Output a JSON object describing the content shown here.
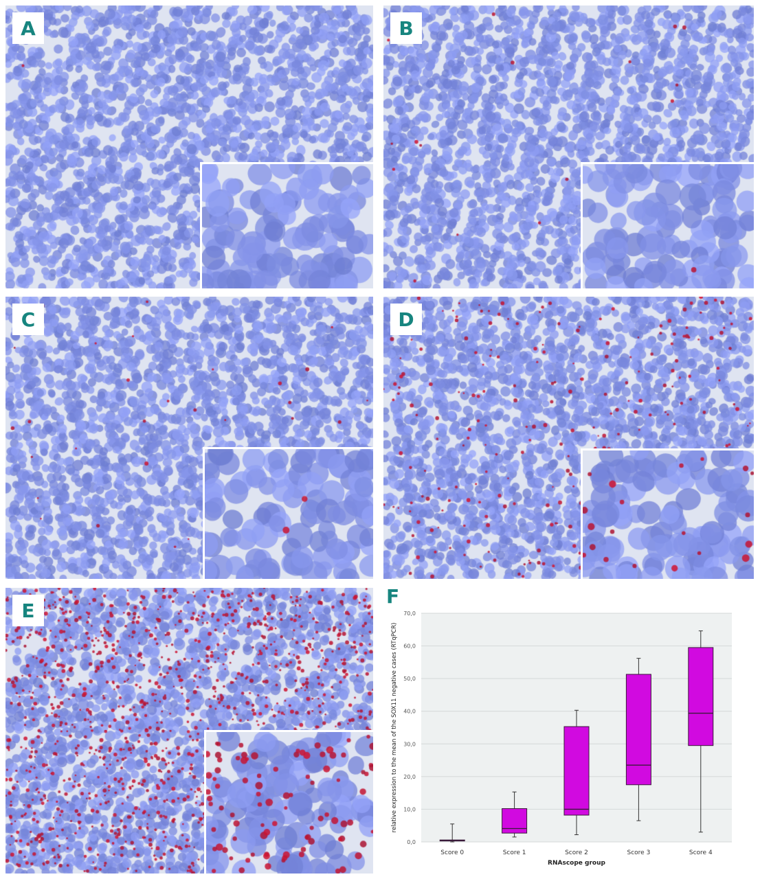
{
  "panels": [
    {
      "label": "A"
    },
    {
      "label": "B"
    },
    {
      "label": "C"
    },
    {
      "label": "D"
    },
    {
      "label": "E"
    }
  ],
  "chart_data": {
    "panel_label": "F",
    "type": "box",
    "categories": [
      "Score 0",
      "Score 1",
      "Score 2",
      "Score 3",
      "Score 4"
    ],
    "boxes": [
      {
        "min": 0.0,
        "q1": 0.3,
        "median": 0.4,
        "q3": 0.6,
        "max": 5.5
      },
      {
        "min": 1.5,
        "q1": 2.7,
        "median": 4.1,
        "q3": 10.2,
        "max": 15.3
      },
      {
        "min": 2.2,
        "q1": 8.2,
        "median": 10.0,
        "q3": 35.3,
        "max": 40.3
      },
      {
        "min": 6.5,
        "q1": 17.5,
        "median": 23.5,
        "q3": 51.3,
        "max": 56.2
      },
      {
        "min": 3.0,
        "q1": 29.5,
        "median": 39.4,
        "q3": 59.5,
        "max": 64.6
      }
    ],
    "xlabel": "RNAscope group",
    "ylabel": "relative expression to the mean of the SOX11 negative cases (RTqPCR)",
    "ylim": [
      0,
      70
    ],
    "yticks": [
      "0,0",
      "10,0",
      "20,0",
      "30,0",
      "40,0",
      "50,0",
      "60,0",
      "70,0"
    ],
    "grid": true,
    "box_color": "#d10ae0",
    "plot_background": "#eef1f1"
  }
}
